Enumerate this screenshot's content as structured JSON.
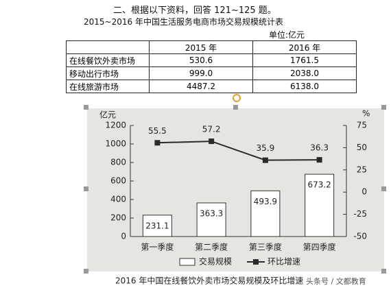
{
  "header": {
    "instruction": "二、根据以下资料，回答 121~125 题。",
    "table_title": "2015~2016 年中国生活服务电商市场交易规模统计表",
    "unit": "单位:亿元"
  },
  "table": {
    "columns": [
      "",
      "2015 年",
      "2016 年"
    ],
    "rows": [
      [
        "在线餐饮外卖市场",
        "530.6",
        "1761.5"
      ],
      [
        "移动出行市场",
        "999.0",
        "2038.0"
      ],
      [
        "在线旅游市场",
        "4487.2",
        "6138.0"
      ]
    ]
  },
  "chart_data": {
    "type": "bar",
    "y_label": "亿元",
    "y2_label": "%",
    "categories": [
      "第一季度",
      "第二季度",
      "第三季度",
      "第四季度"
    ],
    "series": [
      {
        "name": "交易规模",
        "type": "bar",
        "color": "#ffffff",
        "values": [
          231.1,
          363.3,
          493.9,
          673.2
        ]
      },
      {
        "name": "环比增速",
        "type": "line",
        "axis": "y2",
        "color": "#2a2a2a",
        "values": [
          55.5,
          57.2,
          35.9,
          36.3
        ]
      }
    ],
    "ylim": [
      0,
      1200
    ],
    "yticks": [
      0,
      200,
      400,
      600,
      800,
      1000,
      1200
    ],
    "y2lim": [
      -50,
      75
    ],
    "y2ticks": [
      -50,
      -25,
      0,
      25,
      50,
      75
    ]
  },
  "caption": "2016 年中国在线餐饮外卖市场交易规模及环比增速",
  "watermark": "头条号 / 文都教育"
}
